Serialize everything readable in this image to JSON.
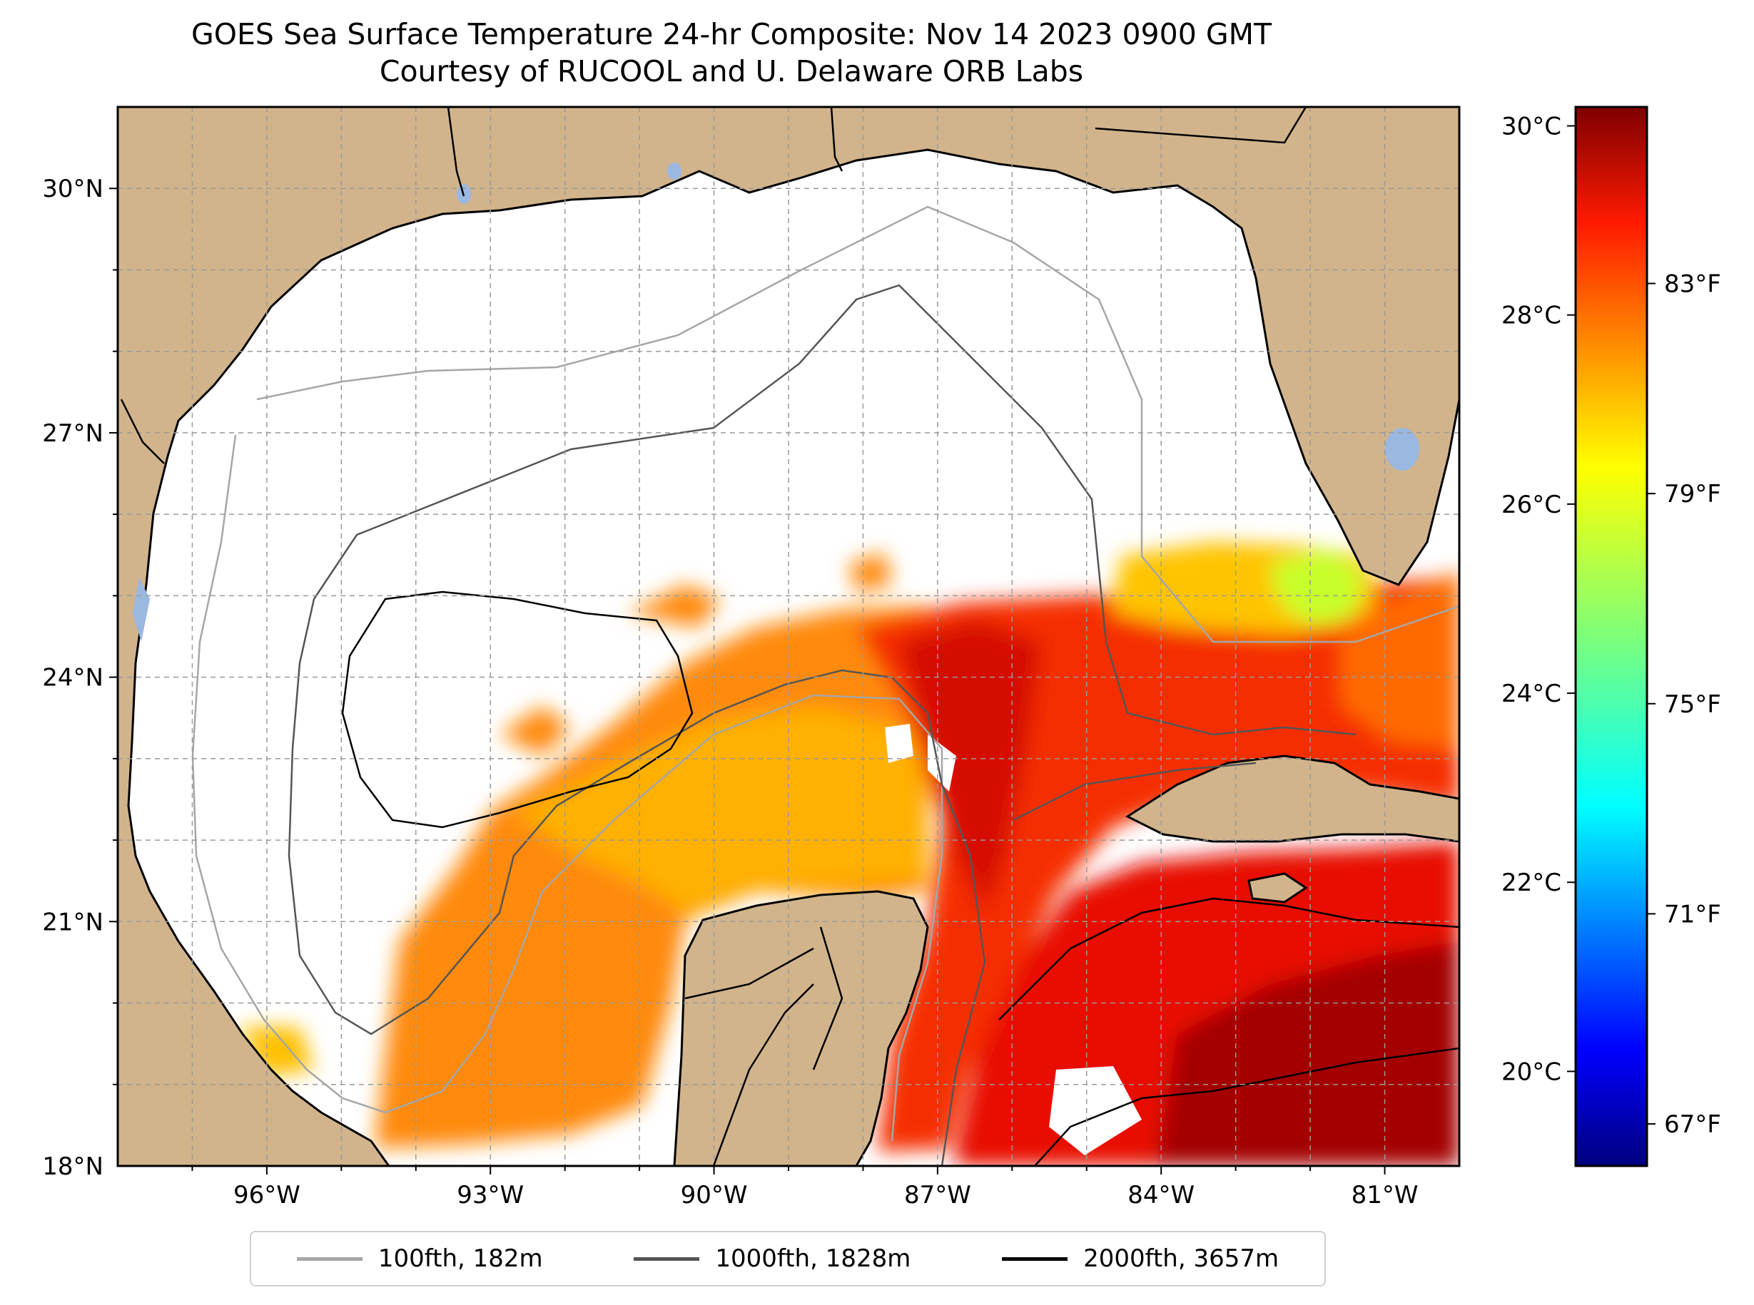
{
  "title": {
    "line1": "GOES Sea Surface Temperature 24-hr Composite: Nov 14 2023 0900 GMT",
    "line2": "Courtesy of RUCOOL and U. Delaware ORB Labs"
  },
  "map": {
    "lon_range": [
      -98,
      -80
    ],
    "lat_range": [
      18,
      31
    ],
    "lon_ticks": [
      {
        "lon": -96,
        "label": "96°W"
      },
      {
        "lon": -93,
        "label": "93°W"
      },
      {
        "lon": -90,
        "label": "90°W"
      },
      {
        "lon": -87,
        "label": "87°W"
      },
      {
        "lon": -84,
        "label": "84°W"
      },
      {
        "lon": -81,
        "label": "81°W"
      }
    ],
    "lat_ticks": [
      {
        "lat": 18,
        "label": "18°N"
      },
      {
        "lat": 21,
        "label": "21°N"
      },
      {
        "lat": 24,
        "label": "24°N"
      },
      {
        "lat": 27,
        "label": "27°N"
      },
      {
        "lat": 30,
        "label": "30°N"
      }
    ],
    "gridlines": true,
    "colors": {
      "land": "#d2b48c",
      "water_bodies": "#9ab8e0",
      "ocean_no_data": "#ffffff"
    }
  },
  "colorbar": {
    "celsius_range": [
      19,
      30.2
    ],
    "celsius_ticks": [
      {
        "value": 20,
        "label": "20°C"
      },
      {
        "value": 22,
        "label": "22°C"
      },
      {
        "value": 24,
        "label": "24°C"
      },
      {
        "value": 26,
        "label": "26°C"
      },
      {
        "value": 28,
        "label": "28°C"
      },
      {
        "value": 30,
        "label": "30°C"
      }
    ],
    "fahrenheit_ticks": [
      {
        "value": 67,
        "label": "67°F"
      },
      {
        "value": 71,
        "label": "71°F"
      },
      {
        "value": 75,
        "label": "75°F"
      },
      {
        "value": 79,
        "label": "79°F"
      },
      {
        "value": 83,
        "label": "83°F"
      }
    ],
    "colormap": "jet"
  },
  "legend": {
    "placement": "bottom-center",
    "items": [
      {
        "label": "100fth, 182m",
        "color": "#a6a6a6"
      },
      {
        "label": "1000fth, 1828m",
        "color": "#555555"
      },
      {
        "label": "2000fth, 3657m",
        "color": "#000000"
      }
    ]
  }
}
